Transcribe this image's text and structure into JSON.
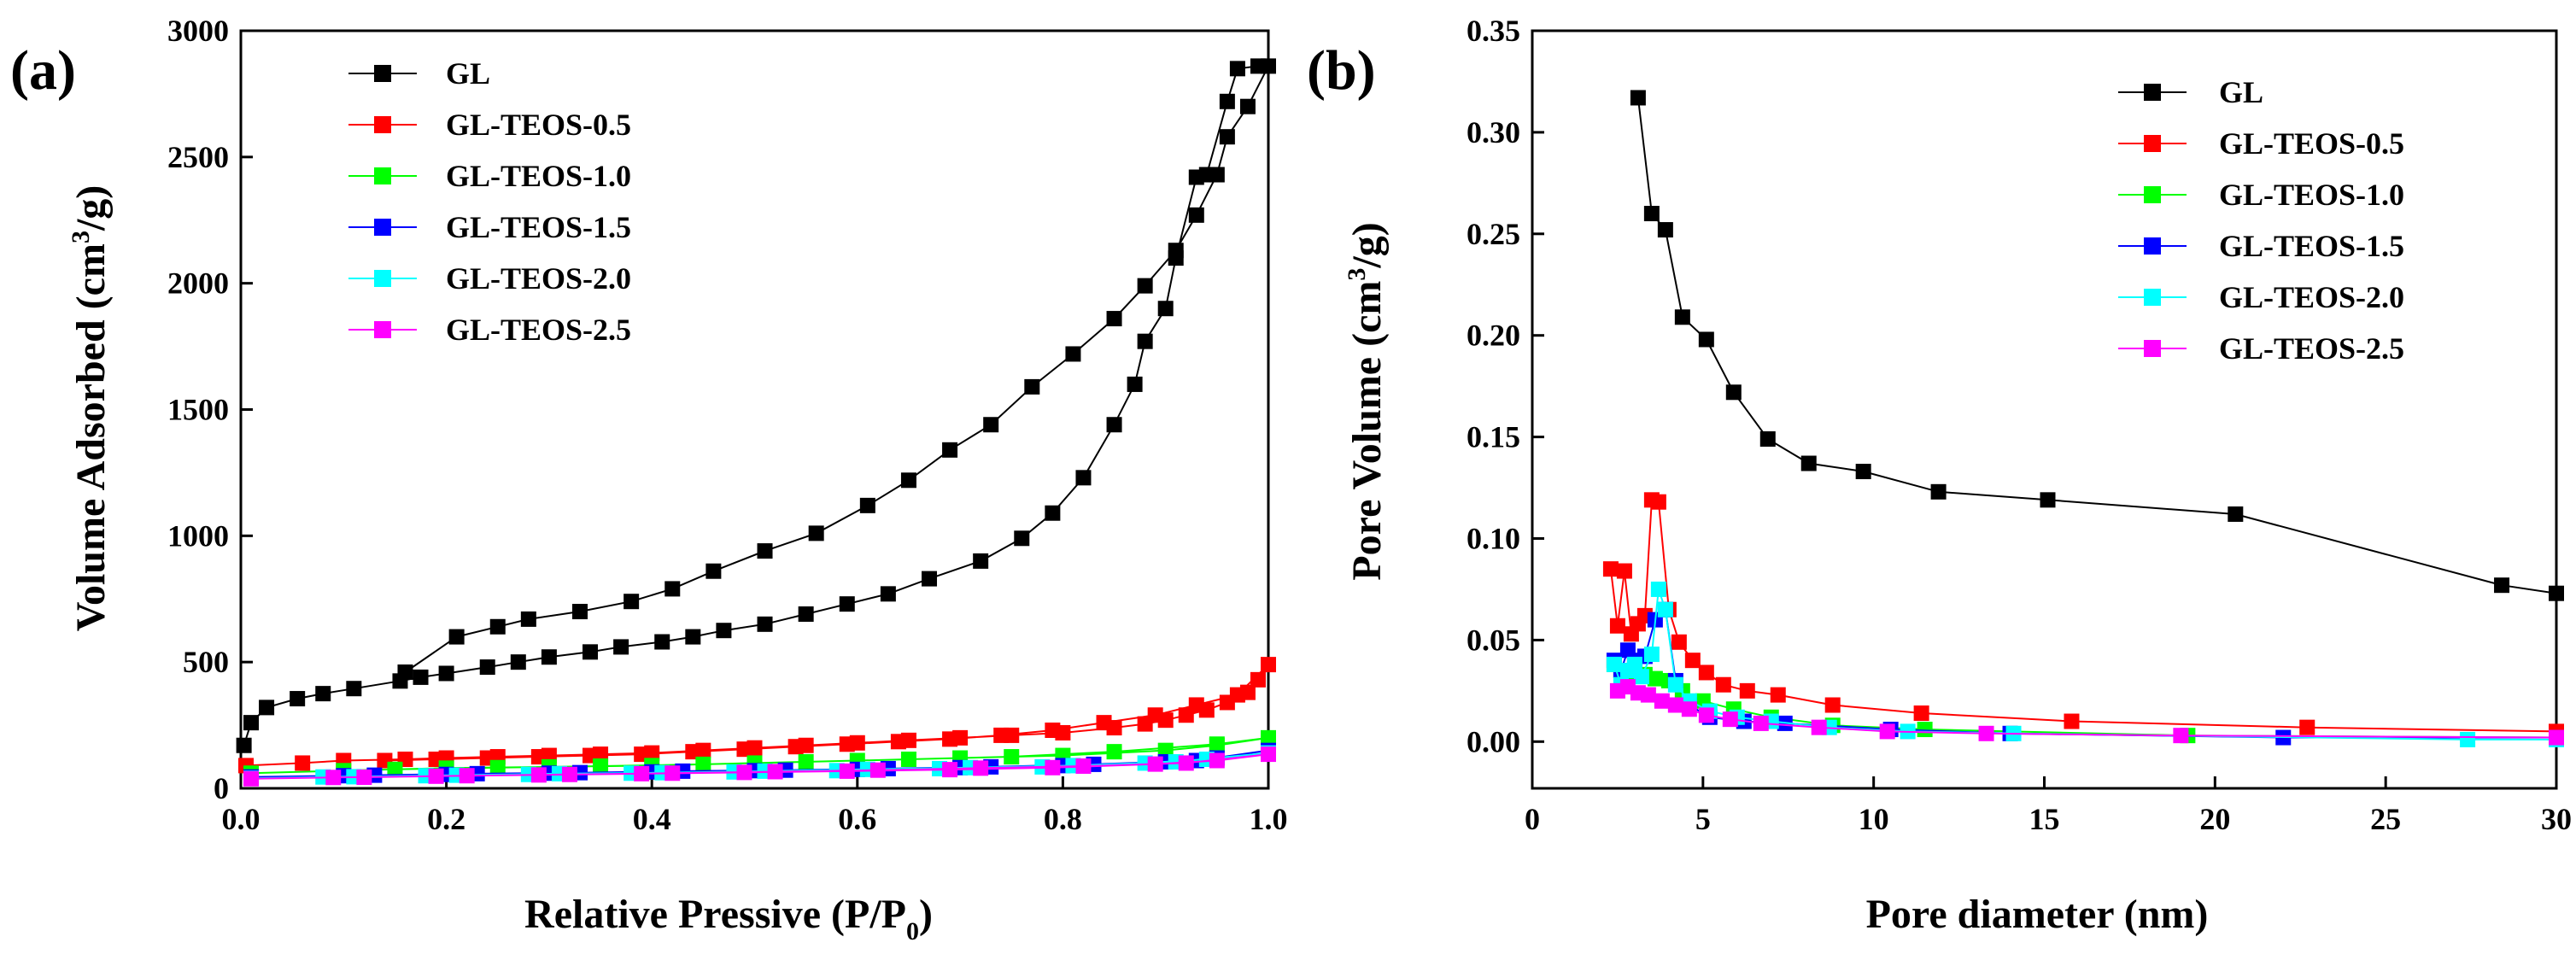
{
  "chart_data": [
    {
      "panel": "(a)",
      "type": "line",
      "xlabel": "Relative Pressive (P/P0)",
      "xlabel_main": "Relative Pressive (P/P",
      "xlabel_sub": "0",
      "xlabel_close": ")",
      "ylabel": "Volume Adsorbed (cm3/g)",
      "ylabel_main": "Volume Adsorbed (cm",
      "ylabel_sup": "3",
      "ylabel_close": "/g)",
      "xlim": [
        0,
        1.0
      ],
      "ylim": [
        0,
        3000
      ],
      "xticks": [
        "0.0",
        "0.2",
        "0.4",
        "0.6",
        "0.8",
        "1.0"
      ],
      "yticks": [
        "0",
        "500",
        "1000",
        "1500",
        "2000",
        "2500",
        "3000"
      ],
      "legend_position": "top-left",
      "series": [
        {
          "name": "GL",
          "color": "#000000",
          "x": [
            0.003,
            0.01,
            0.025,
            0.055,
            0.08,
            0.11,
            0.155,
            0.175,
            0.2,
            0.24,
            0.27,
            0.3,
            0.34,
            0.37,
            0.41,
            0.44,
            0.47,
            0.51,
            0.55,
            0.59,
            0.63,
            0.67,
            0.72,
            0.76,
            0.79,
            0.82,
            0.85,
            0.87,
            0.88,
            0.9,
            0.91,
            0.93,
            0.94,
            0.96,
            0.97,
            0.99,
            1.0,
            0.98,
            0.96,
            0.95,
            0.93,
            0.91,
            0.88,
            0.85,
            0.81,
            0.77,
            0.73,
            0.69,
            0.65,
            0.61,
            0.56,
            0.51,
            0.46,
            0.42,
            0.38,
            0.33,
            0.28,
            0.25,
            0.21,
            0.16
          ],
          "y": [
            170,
            260,
            320,
            355,
            375,
            395,
            425,
            440,
            455,
            480,
            500,
            520,
            540,
            560,
            580,
            600,
            625,
            650,
            690,
            730,
            770,
            830,
            900,
            990,
            1090,
            1230,
            1440,
            1600,
            1770,
            1900,
            2100,
            2420,
            2430,
            2720,
            2850,
            2860,
            2860,
            2700,
            2580,
            2430,
            2270,
            2130,
            1990,
            1860,
            1720,
            1590,
            1440,
            1340,
            1220,
            1120,
            1010,
            940,
            860,
            790,
            740,
            700,
            670,
            640,
            600,
            460
          ]
        },
        {
          "name": "GL-TEOS-0.5",
          "color": "#ff0000",
          "x": [
            0.005,
            0.06,
            0.1,
            0.16,
            0.2,
            0.25,
            0.3,
            0.35,
            0.4,
            0.45,
            0.5,
            0.55,
            0.6,
            0.65,
            0.7,
            0.75,
            0.8,
            0.85,
            0.88,
            0.9,
            0.92,
            0.94,
            0.96,
            0.98,
            0.99,
            1.0,
            0.97,
            0.93,
            0.89,
            0.84,
            0.79,
            0.74,
            0.69,
            0.64,
            0.59,
            0.54,
            0.49,
            0.44,
            0.39,
            0.34,
            0.29,
            0.24,
            0.19,
            0.14
          ],
          "y": [
            90,
            100,
            110,
            115,
            120,
            125,
            130,
            135,
            140,
            150,
            160,
            170,
            180,
            190,
            200,
            210,
            220,
            240,
            255,
            270,
            290,
            310,
            340,
            380,
            430,
            490,
            370,
            330,
            290,
            260,
            230,
            210,
            195,
            185,
            175,
            165,
            155,
            145,
            135,
            130,
            125,
            120,
            115,
            110
          ]
        },
        {
          "name": "GL-TEOS-1.0",
          "color": "#00ff00",
          "x": [
            0.01,
            0.1,
            0.2,
            0.3,
            0.4,
            0.5,
            0.6,
            0.7,
            0.8,
            0.9,
            0.95,
            1.0,
            0.95,
            0.85,
            0.75,
            0.65,
            0.55,
            0.45,
            0.35,
            0.25,
            0.15
          ],
          "y": [
            60,
            70,
            80,
            85,
            90,
            100,
            110,
            120,
            130,
            150,
            170,
            200,
            175,
            145,
            125,
            115,
            105,
            95,
            88,
            82,
            75
          ]
        },
        {
          "name": "GL-TEOS-1.5",
          "color": "#0000ff",
          "x": [
            0.01,
            0.1,
            0.2,
            0.3,
            0.4,
            0.5,
            0.6,
            0.7,
            0.8,
            0.9,
            0.95,
            1.0,
            0.93,
            0.83,
            0.73,
            0.63,
            0.53,
            0.43,
            0.33,
            0.23,
            0.13
          ],
          "y": [
            45,
            50,
            55,
            60,
            65,
            70,
            75,
            82,
            90,
            105,
            120,
            150,
            110,
            95,
            85,
            78,
            72,
            68,
            62,
            58,
            52
          ]
        },
        {
          "name": "GL-TEOS-2.0",
          "color": "#00ffff",
          "x": [
            0.01,
            0.08,
            0.18,
            0.28,
            0.38,
            0.48,
            0.58,
            0.68,
            0.78,
            0.88,
            0.94,
            1.0,
            0.91,
            0.81,
            0.71,
            0.61,
            0.51,
            0.41,
            0.31,
            0.21,
            0.11
          ],
          "y": [
            40,
            45,
            50,
            55,
            60,
            65,
            70,
            78,
            85,
            100,
            115,
            140,
            105,
            90,
            82,
            75,
            68,
            62,
            58,
            52,
            46
          ]
        },
        {
          "name": "GL-TEOS-2.5",
          "color": "#ff00ff",
          "x": [
            0.01,
            0.09,
            0.19,
            0.29,
            0.39,
            0.49,
            0.59,
            0.69,
            0.79,
            0.89,
            0.95,
            1.0,
            0.92,
            0.82,
            0.72,
            0.62,
            0.52,
            0.42,
            0.32,
            0.22,
            0.12
          ],
          "y": [
            38,
            43,
            48,
            53,
            58,
            63,
            68,
            74,
            82,
            96,
            110,
            135,
            100,
            88,
            80,
            72,
            66,
            60,
            55,
            50,
            44
          ]
        }
      ]
    },
    {
      "panel": "(b)",
      "type": "line",
      "xlabel": "Pore diameter (nm)",
      "ylabel": "Pore Volume (cm3/g)",
      "ylabel_main": "Pore Volume (cm",
      "ylabel_sup": "3",
      "ylabel_close": "/g)",
      "xlim": [
        0,
        30
      ],
      "ylim": [
        -0.023,
        0.35
      ],
      "xticks": [
        "0",
        "5",
        "10",
        "15",
        "20",
        "25",
        "30"
      ],
      "yticks": [
        "0.00",
        "0.05",
        "0.10",
        "0.15",
        "0.20",
        "0.25",
        "0.30",
        "0.35"
      ],
      "legend_position": "top-right",
      "series": [
        {
          "name": "GL",
          "color": "#000000",
          "x": [
            3.1,
            3.5,
            3.9,
            4.4,
            5.1,
            5.9,
            6.9,
            8.1,
            9.7,
            11.9,
            15.1,
            20.6,
            28.4,
            30.0
          ],
          "y": [
            0.317,
            0.26,
            0.252,
            0.209,
            0.198,
            0.172,
            0.149,
            0.137,
            0.133,
            0.123,
            0.119,
            0.112,
            0.077,
            0.073
          ]
        },
        {
          "name": "GL-TEOS-0.5",
          "color": "#ff0000",
          "x": [
            2.3,
            2.5,
            2.7,
            2.9,
            3.1,
            3.3,
            3.5,
            3.7,
            4.0,
            4.3,
            4.7,
            5.1,
            5.6,
            6.3,
            7.2,
            8.8,
            11.4,
            15.8,
            22.7,
            30.0
          ],
          "y": [
            0.085,
            0.057,
            0.084,
            0.053,
            0.058,
            0.062,
            0.119,
            0.118,
            0.065,
            0.049,
            0.04,
            0.034,
            0.028,
            0.025,
            0.023,
            0.018,
            0.014,
            0.01,
            0.007,
            0.005
          ]
        },
        {
          "name": "GL-TEOS-1.0",
          "color": "#00ff00",
          "x": [
            2.4,
            2.6,
            2.8,
            3.0,
            3.3,
            3.6,
            4.0,
            4.4,
            5.0,
            5.9,
            7.0,
            8.8,
            11.5,
            19.2,
            30.0
          ],
          "y": [
            0.038,
            0.035,
            0.033,
            0.034,
            0.033,
            0.031,
            0.03,
            0.025,
            0.02,
            0.016,
            0.012,
            0.008,
            0.006,
            0.003,
            0.002
          ]
        },
        {
          "name": "GL-TEOS-1.5",
          "color": "#0000ff",
          "x": [
            2.4,
            2.6,
            2.8,
            3.0,
            3.3,
            3.6,
            3.9,
            4.2,
            4.6,
            5.2,
            6.2,
            7.4,
            10.5,
            14.0,
            22.0,
            30.0
          ],
          "y": [
            0.04,
            0.035,
            0.045,
            0.04,
            0.042,
            0.06,
            0.065,
            0.03,
            0.018,
            0.012,
            0.01,
            0.009,
            0.006,
            0.004,
            0.002,
            0.002
          ]
        },
        {
          "name": "GL-TEOS-2.0",
          "color": "#00ffff",
          "x": [
            2.4,
            2.6,
            2.8,
            3.0,
            3.2,
            3.5,
            3.7,
            3.9,
            4.2,
            4.6,
            5.2,
            6.0,
            7.0,
            8.7,
            11.0,
            14.1,
            27.4,
            30.0
          ],
          "y": [
            0.038,
            0.028,
            0.035,
            0.038,
            0.032,
            0.043,
            0.075,
            0.065,
            0.028,
            0.02,
            0.015,
            0.012,
            0.01,
            0.007,
            0.005,
            0.004,
            0.001,
            0.001
          ]
        },
        {
          "name": "GL-TEOS-2.5",
          "color": "#ff00ff",
          "x": [
            2.5,
            2.8,
            3.1,
            3.4,
            3.8,
            4.2,
            4.6,
            5.1,
            5.8,
            6.7,
            8.4,
            10.4,
            13.3,
            19.0,
            30.0
          ],
          "y": [
            0.025,
            0.027,
            0.024,
            0.023,
            0.02,
            0.018,
            0.016,
            0.013,
            0.011,
            0.009,
            0.007,
            0.005,
            0.004,
            0.003,
            0.002
          ]
        }
      ]
    }
  ]
}
